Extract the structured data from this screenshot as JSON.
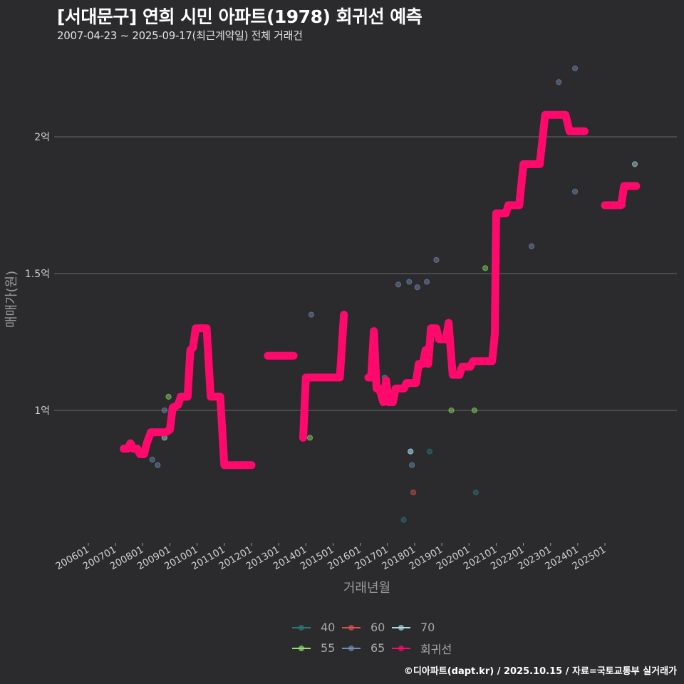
{
  "header": {
    "title": "[서대문구] 연희 시민 아파트(1978) 회귀선 예측",
    "subtitle": "2007-04-23 ~ 2025-09-17(최근계약일) 전체 거래건"
  },
  "footer": {
    "credit": "©디아파트(dapt.kr) / 2025.10.15 / 자료=국토교통부 실거래가"
  },
  "legend": {
    "items": [
      {
        "label": "40",
        "color": "#2a7a78"
      },
      {
        "label": "60",
        "color": "#d9534f"
      },
      {
        "label": "70",
        "color": "#a8dde0"
      },
      {
        "label": "55",
        "color": "#8ee06a"
      },
      {
        "label": "65",
        "color": "#6f8fb8"
      },
      {
        "label": "회귀선",
        "color": "#ff0a6c"
      }
    ]
  },
  "chart_data": {
    "type": "line",
    "title": "[서대문구] 연희 시민 아파트(1978) 회귀선 예측",
    "subtitle": "2007-04-23 ~ 2025-09-17(최근계약일) 전체 거래건",
    "xlabel": "거래년월",
    "ylabel": "매매가(원)",
    "x_ticks": [
      "200601",
      "200701",
      "200801",
      "200901",
      "201001",
      "201101",
      "201201",
      "201301",
      "201401",
      "201501",
      "201601",
      "201701",
      "201801",
      "201901",
      "202001",
      "202101",
      "202201",
      "202301",
      "202401",
      "202501"
    ],
    "y_ticks": [
      {
        "value": 1.0,
        "label": "1억"
      },
      {
        "value": 1.5,
        "label": "1.5억"
      },
      {
        "value": 2.0,
        "label": "2억"
      }
    ],
    "ylim": [
      0.52,
      2.5
    ],
    "grid": true,
    "legend_position": "bottom",
    "series": [
      {
        "name": "회귀선",
        "color": "#ff0a6c",
        "segments": [
          [
            [
              2007.3,
              0.86
            ],
            [
              2007.45,
              0.86
            ],
            [
              2007.55,
              0.88
            ],
            [
              2007.65,
              0.86
            ],
            [
              2007.8,
              0.86
            ],
            [
              2007.9,
              0.84
            ],
            [
              2008.05,
              0.84
            ],
            [
              2008.15,
              0.88
            ],
            [
              2008.3,
              0.92
            ],
            [
              2008.85,
              0.92
            ],
            [
              2009.0,
              0.93
            ],
            [
              2009.1,
              1.01
            ],
            [
              2009.3,
              1.02
            ],
            [
              2009.4,
              1.05
            ],
            [
              2009.65,
              1.05
            ],
            [
              2009.75,
              1.22
            ],
            [
              2009.85,
              1.23
            ],
            [
              2009.95,
              1.3
            ],
            [
              2010.35,
              1.3
            ],
            [
              2010.5,
              1.05
            ],
            [
              2010.85,
              1.05
            ],
            [
              2011.0,
              0.8
            ],
            [
              2012.0,
              0.8
            ]
          ],
          [
            [
              2012.6,
              1.2
            ],
            [
              2013.55,
              1.2
            ]
          ],
          [
            [
              2013.9,
              0.9
            ],
            [
              2014.0,
              1.12
            ],
            [
              2015.25,
              1.12
            ],
            [
              2015.4,
              1.35
            ]
          ],
          [
            [
              2016.3,
              1.12
            ],
            [
              2016.4,
              1.12
            ],
            [
              2016.5,
              1.29
            ],
            [
              2016.6,
              1.08
            ],
            [
              2016.7,
              1.08
            ],
            [
              2016.85,
              1.03
            ],
            [
              2016.95,
              1.11
            ],
            [
              2017.05,
              1.03
            ],
            [
              2017.2,
              1.03
            ],
            [
              2017.3,
              1.08
            ],
            [
              2017.6,
              1.08
            ],
            [
              2017.7,
              1.1
            ],
            [
              2018.05,
              1.1
            ],
            [
              2018.15,
              1.17
            ],
            [
              2018.3,
              1.17
            ],
            [
              2018.4,
              1.22
            ],
            [
              2018.5,
              1.17
            ],
            [
              2018.6,
              1.3
            ],
            [
              2018.8,
              1.3
            ],
            [
              2018.9,
              1.26
            ],
            [
              2019.15,
              1.26
            ],
            [
              2019.25,
              1.32
            ],
            [
              2019.4,
              1.13
            ],
            [
              2019.65,
              1.13
            ],
            [
              2019.75,
              1.16
            ],
            [
              2020.05,
              1.16
            ],
            [
              2020.15,
              1.18
            ],
            [
              2020.85,
              1.18
            ],
            [
              2020.95,
              1.28
            ],
            [
              2021.0,
              1.72
            ],
            [
              2021.35,
              1.72
            ],
            [
              2021.45,
              1.75
            ],
            [
              2021.85,
              1.75
            ],
            [
              2022.0,
              1.9
            ],
            [
              2022.6,
              1.9
            ],
            [
              2022.8,
              2.08
            ],
            [
              2023.55,
              2.08
            ],
            [
              2023.7,
              2.02
            ],
            [
              2024.25,
              2.02
            ]
          ],
          [
            [
              2025.0,
              1.75
            ],
            [
              2025.6,
              1.75
            ],
            [
              2025.7,
              1.82
            ],
            [
              2026.15,
              1.82
            ]
          ]
        ]
      }
    ],
    "scatter": [
      {
        "group": "65",
        "color": "#6f8fb8",
        "points": [
          [
            2008.35,
            0.82
          ],
          [
            2008.55,
            0.8
          ],
          [
            2008.8,
            1.0
          ],
          [
            2014.2,
            1.35
          ],
          [
            2016.9,
            1.12
          ],
          [
            2017.4,
            1.46
          ],
          [
            2017.8,
            1.47
          ],
          [
            2018.1,
            1.45
          ],
          [
            2018.8,
            1.55
          ],
          [
            2018.45,
            1.47
          ],
          [
            2017.9,
            0.8
          ],
          [
            2022.3,
            1.6
          ],
          [
            2023.3,
            2.2
          ],
          [
            2023.9,
            2.25
          ],
          [
            2023.9,
            1.8
          ],
          [
            2017.85,
            0.85
          ]
        ]
      },
      {
        "group": "55",
        "color": "#8ee06a",
        "points": [
          [
            2008.95,
            1.05
          ],
          [
            2014.15,
            0.9
          ],
          [
            2019.35,
            1.0
          ],
          [
            2020.2,
            1.0
          ],
          [
            2020.6,
            1.52
          ],
          [
            2025.65,
            1.75
          ]
        ]
      },
      {
        "group": "40",
        "color": "#2a7a78",
        "points": [
          [
            2017.6,
            0.6
          ],
          [
            2018.55,
            0.85
          ],
          [
            2020.25,
            0.7
          ]
        ]
      },
      {
        "group": "60",
        "color": "#d9534f",
        "points": [
          [
            2017.95,
            0.7
          ]
        ]
      },
      {
        "group": "70",
        "color": "#a8dde0",
        "points": [
          [
            2008.8,
            0.9
          ],
          [
            2017.85,
            0.85
          ],
          [
            2026.1,
            1.9
          ]
        ]
      }
    ]
  }
}
